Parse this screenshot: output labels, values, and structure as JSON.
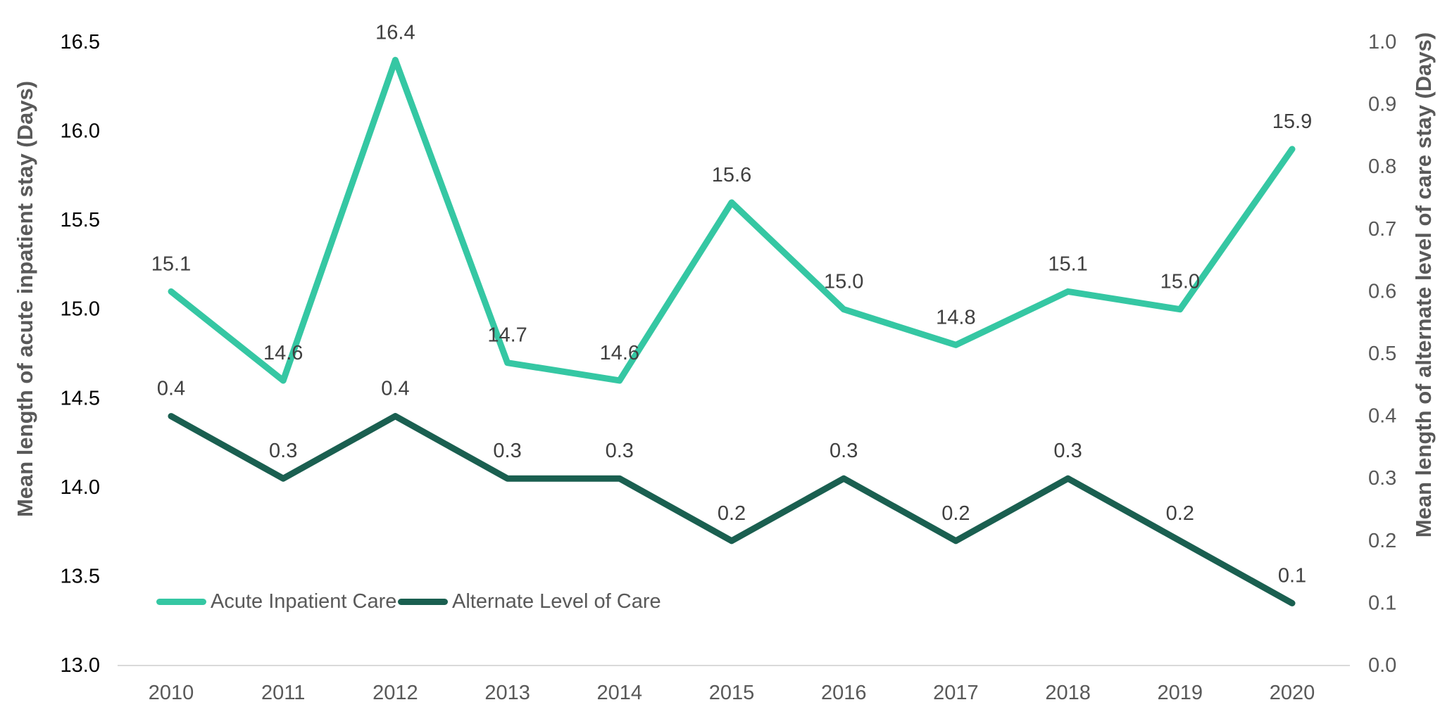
{
  "chart_data": {
    "type": "line",
    "categories": [
      "2010",
      "2011",
      "2012",
      "2013",
      "2014",
      "2015",
      "2016",
      "2017",
      "2018",
      "2019",
      "2020"
    ],
    "series": [
      {
        "name": "Acute Inpatient Care",
        "axis": "left",
        "color": "#35C7A3",
        "values": [
          15.1,
          14.6,
          16.4,
          14.7,
          14.6,
          15.6,
          15.0,
          14.8,
          15.1,
          15.0,
          15.9
        ],
        "data_labels": [
          "15.1",
          "14.6",
          "16.4",
          "14.7",
          "14.6",
          "15.6",
          "15.0",
          "14.8",
          "15.1",
          "15.0",
          "15.9"
        ]
      },
      {
        "name": "Alternate Level of Care",
        "axis": "right",
        "color": "#1A5F50",
        "values": [
          0.4,
          0.3,
          0.4,
          0.3,
          0.3,
          0.2,
          0.3,
          0.2,
          0.3,
          0.2,
          0.1
        ],
        "data_labels": [
          "0.4",
          "0.3",
          "0.4",
          "0.3",
          "0.3",
          "0.2",
          "0.3",
          "0.2",
          "0.3",
          "0.2",
          "0.1"
        ]
      }
    ],
    "left_axis": {
      "title": "Mean length of acute inpatient stay (Days)",
      "min": 13.0,
      "max": 16.5,
      "step": 0.5,
      "tick_labels": [
        "13.0",
        "13.5",
        "14.0",
        "14.5",
        "15.0",
        "15.5",
        "16.0",
        "16.5"
      ]
    },
    "right_axis": {
      "title": "Mean length of alternate level of care stay (Days)",
      "min": 0.0,
      "max": 1.0,
      "step": 0.1,
      "tick_labels": [
        "0.0",
        "0.1",
        "0.2",
        "0.3",
        "0.4",
        "0.5",
        "0.6",
        "0.7",
        "0.8",
        "0.9",
        "1.0"
      ]
    },
    "legend": {
      "position": "bottom-left-inside",
      "entries": [
        "Acute Inpatient Care",
        "Alternate Level of Care"
      ]
    },
    "grid": "baseline-only",
    "colors": {
      "left_tick_label": "#000000",
      "right_tick_label": "#595959",
      "x_tick_label": "#595959",
      "data_label": "#404040",
      "axis_title": "#595959",
      "baseline": "#D9D9D9",
      "background": "#FFFFFF"
    }
  }
}
